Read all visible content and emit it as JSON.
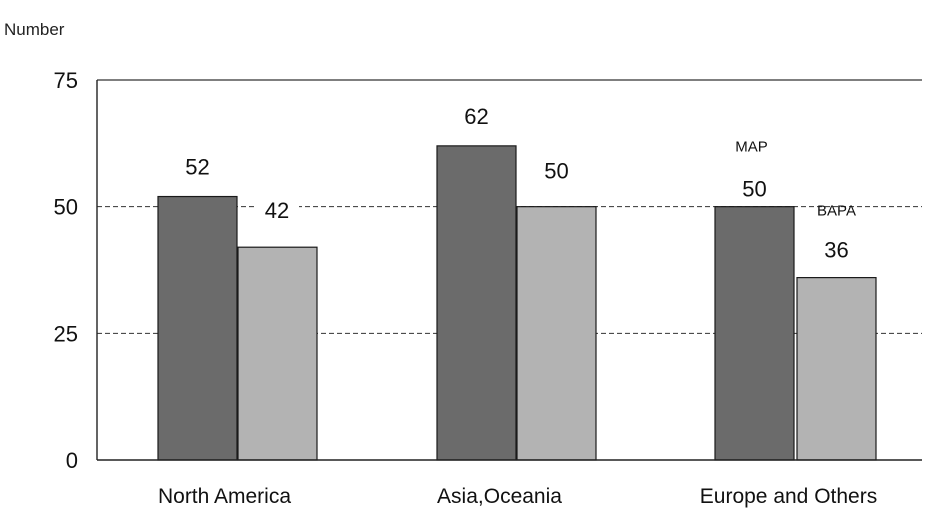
{
  "chart_data": {
    "type": "bar",
    "ylabel": "Number",
    "xlabel": "",
    "ylim": [
      0,
      75
    ],
    "yticks": [
      0,
      25,
      50,
      75
    ],
    "grid": "horizontal dashed",
    "categories": [
      "North  America",
      "Asia,Oceania",
      "Europe and Others"
    ],
    "series": [
      {
        "name": "MAP",
        "values": [
          52,
          62,
          50
        ],
        "color": "#6b6b6b"
      },
      {
        "name": "BAPA",
        "values": [
          42,
          50,
          36
        ],
        "color": "#b3b3b3"
      }
    ],
    "annotations": [
      {
        "text": "MAP",
        "category": 2,
        "series": 0
      },
      {
        "text": "BAPA",
        "category": 2,
        "series": 1
      }
    ]
  }
}
